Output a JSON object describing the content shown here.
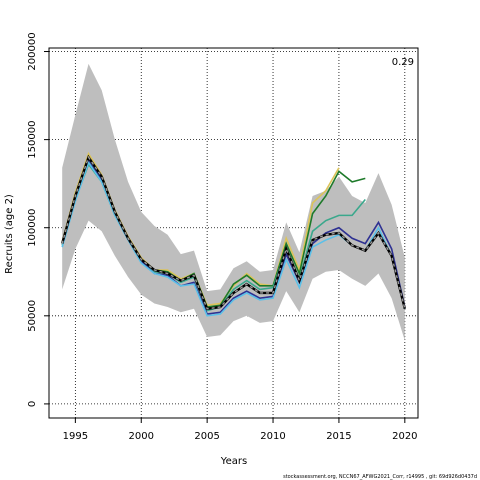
{
  "chart_data": {
    "type": "line",
    "xlabel": "Years",
    "ylabel": "Recruits (age 2)",
    "xlim": [
      1993,
      2021
    ],
    "ylim": [
      -8000,
      202000
    ],
    "xticks": [
      1995,
      2000,
      2005,
      2010,
      2015,
      2020
    ],
    "yticks": [
      0,
      50000,
      100000,
      150000,
      200000
    ],
    "grid": "dotted",
    "annotation": "0.29",
    "footer": "stockassessment.org, NCCN67_AFWG2021_Corr, r14995 , git: 69d926d0437d",
    "band": {
      "x": [
        1994,
        1995,
        1996,
        1997,
        1998,
        1999,
        2000,
        2001,
        2002,
        2003,
        2004,
        2005,
        2006,
        2007,
        2008,
        2009,
        2010,
        2011,
        2012,
        2013,
        2014,
        2015,
        2016,
        2017,
        2018,
        2019,
        2020
      ],
      "lower": [
        65000,
        88000,
        104000,
        98000,
        84000,
        72000,
        62000,
        57000,
        55000,
        52000,
        54000,
        38000,
        39000,
        47000,
        50000,
        46000,
        47000,
        64000,
        52000,
        71000,
        75000,
        76000,
        71000,
        67000,
        74000,
        60000,
        36000
      ],
      "upper": [
        134000,
        164000,
        193000,
        178000,
        150000,
        126000,
        109000,
        101000,
        96000,
        85000,
        87000,
        64000,
        65000,
        77000,
        81000,
        75000,
        76000,
        103000,
        86000,
        118000,
        121000,
        129000,
        118000,
        114000,
        131000,
        113000,
        83000
      ],
      "color": "#bebebe"
    },
    "series": [
      {
        "color": "#dcc45a",
        "start": 1994,
        "values": [
          92000,
          120000,
          142000,
          130000,
          110000,
          95000,
          83000,
          76000,
          76000,
          71000,
          74000,
          56000,
          57000,
          67000,
          74000,
          68000,
          67000,
          94000,
          76000,
          114000,
          121000,
          134000
        ]
      },
      {
        "color": "#1e7a2a",
        "start": 1994,
        "values": [
          91000,
          118000,
          139000,
          128000,
          108000,
          94000,
          82000,
          76000,
          75000,
          70000,
          74000,
          55000,
          56000,
          68000,
          73000,
          67000,
          67000,
          91000,
          74000,
          108000,
          118000,
          132000,
          126000,
          128000
        ]
      },
      {
        "color": "#3aa88c",
        "start": 1994,
        "values": [
          90000,
          116000,
          136000,
          126000,
          107000,
          94000,
          81000,
          75000,
          74000,
          69000,
          72000,
          53000,
          55000,
          65000,
          70000,
          65000,
          66000,
          88000,
          71000,
          98000,
          104000,
          107000,
          107000,
          116000
        ]
      },
      {
        "color": "#2e3192",
        "start": 1994,
        "values": [
          91000,
          117000,
          138000,
          127000,
          108000,
          94000,
          81000,
          74000,
          73000,
          67000,
          69000,
          51000,
          52000,
          60000,
          64000,
          60000,
          61000,
          85000,
          69000,
          91000,
          97000,
          100000,
          94000,
          91000,
          103000,
          88000,
          55000
        ]
      },
      {
        "color": "#5bc0e8",
        "start": 1994,
        "values": [
          89000,
          115000,
          137000,
          126000,
          107000,
          93000,
          80000,
          74000,
          72000,
          67000,
          68000,
          50000,
          51000,
          59000,
          63000,
          59000,
          60000,
          82000,
          66000,
          89000,
          93000,
          96000,
          90000,
          87000,
          100000,
          84000,
          54000
        ]
      },
      {
        "color": "#333333",
        "dashed": true,
        "start": 1994,
        "values": [
          91000,
          118000,
          140000,
          129000,
          109000,
          94000,
          82000,
          76000,
          74000,
          70000,
          73000,
          54000,
          55000,
          63000,
          68000,
          63000,
          63000,
          88000,
          70000,
          93000,
          96000,
          97000,
          90000,
          87000,
          97000,
          84000,
          54000
        ]
      }
    ]
  }
}
